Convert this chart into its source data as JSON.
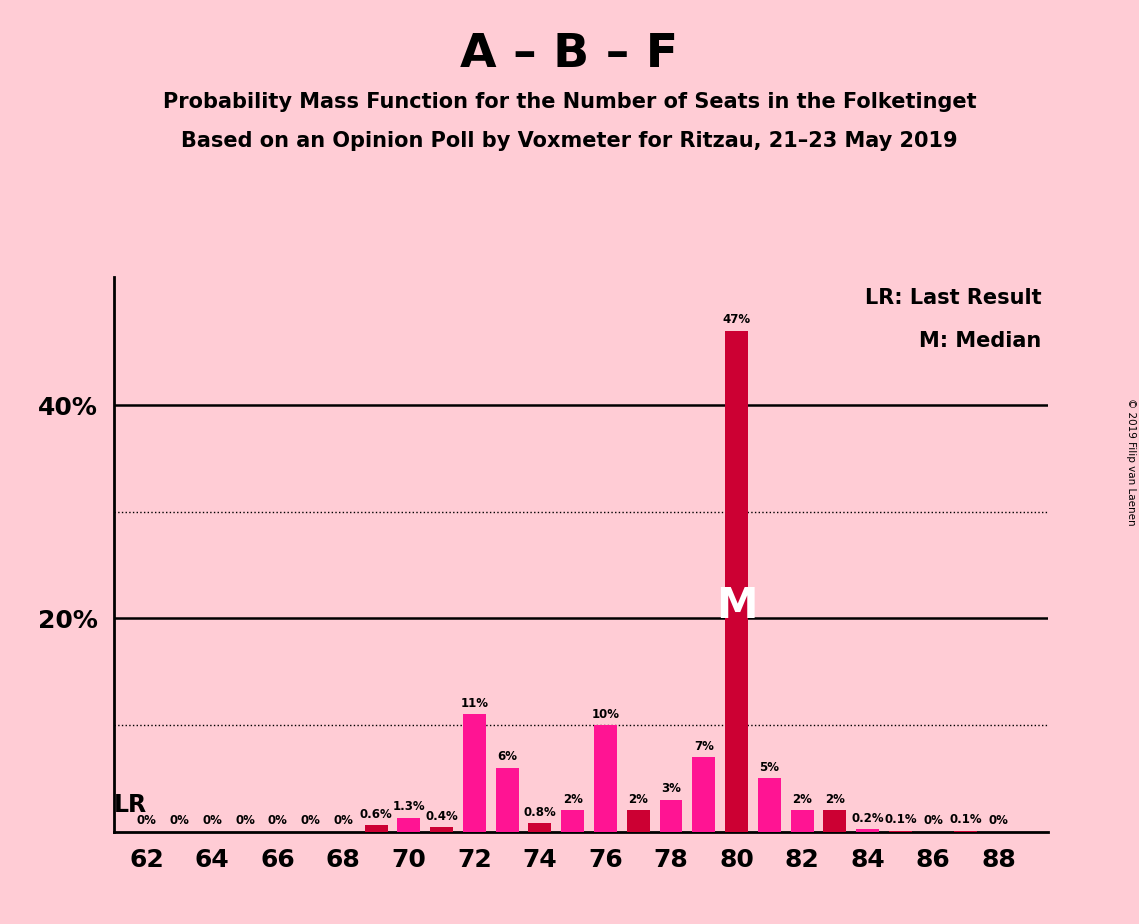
{
  "title_main": "A – B – F",
  "title_sub1": "Probability Mass Function for the Number of Seats in the Folketinget",
  "title_sub2": "Based on an Opinion Poll by Voxmeter for Ritzau, 21–23 May 2019",
  "background_color": "#FFCCD5",
  "seats": [
    62,
    63,
    64,
    65,
    66,
    67,
    68,
    69,
    70,
    71,
    72,
    73,
    74,
    75,
    76,
    77,
    78,
    79,
    80,
    81,
    82,
    83,
    84,
    85,
    86,
    87,
    88
  ],
  "values": [
    0.0,
    0.0,
    0.0,
    0.0,
    0.0,
    0.0,
    0.0,
    0.6,
    1.3,
    0.4,
    11.0,
    6.0,
    0.8,
    2.0,
    10.0,
    2.0,
    3.0,
    7.0,
    47.0,
    5.0,
    2.0,
    2.0,
    0.2,
    0.1,
    0.0,
    0.1,
    0.0
  ],
  "bar_colors": [
    "#FF1493",
    "#FF1493",
    "#FF1493",
    "#FF1493",
    "#FF1493",
    "#FF1493",
    "#FF1493",
    "#CC0033",
    "#FF1493",
    "#CC0033",
    "#FF1493",
    "#FF1493",
    "#CC0033",
    "#FF1493",
    "#FF1493",
    "#CC0033",
    "#FF1493",
    "#FF1493",
    "#CC0033",
    "#FF1493",
    "#FF1493",
    "#CC0033",
    "#FF1493",
    "#CC0033",
    "#FF1493",
    "#CC0033",
    "#CC0033"
  ],
  "label_values": [
    0,
    0,
    0,
    0,
    0,
    0,
    0,
    0.6,
    1.3,
    0.4,
    11,
    6,
    0.8,
    2,
    10,
    2,
    3,
    7,
    47,
    5,
    2,
    2,
    0.2,
    0.1,
    0,
    0.1,
    0
  ],
  "median_seat": 80,
  "solid_yticks": [
    20,
    40
  ],
  "dotted_yticks": [
    10,
    30
  ],
  "xtick_labels": [
    "62",
    "64",
    "66",
    "68",
    "70",
    "72",
    "74",
    "76",
    "78",
    "80",
    "82",
    "84",
    "86",
    "88"
  ],
  "xtick_positions": [
    62,
    64,
    66,
    68,
    70,
    72,
    74,
    76,
    78,
    80,
    82,
    84,
    86,
    88
  ],
  "legend_lr": "LR: Last Result",
  "legend_m": "M: Median",
  "watermark": "© 2019 Filip van Laenen",
  "bar_width": 0.7
}
